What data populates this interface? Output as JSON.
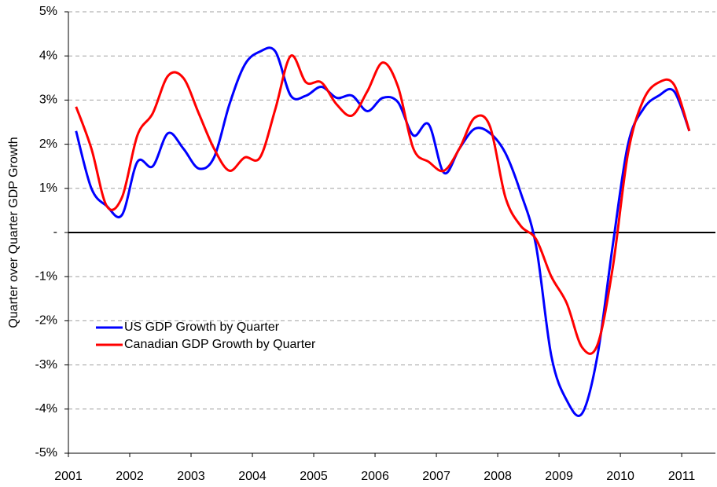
{
  "chart_data": {
    "type": "line",
    "y_label": "Quarter over Quarter GDP Growth",
    "x": [
      2001.125,
      2001.375,
      2001.625,
      2001.875,
      2002.125,
      2002.375,
      2002.625,
      2002.875,
      2003.125,
      2003.375,
      2003.625,
      2003.875,
      2004.125,
      2004.375,
      2004.625,
      2004.875,
      2005.125,
      2005.375,
      2005.625,
      2005.875,
      2006.125,
      2006.375,
      2006.625,
      2006.875,
      2007.125,
      2007.375,
      2007.625,
      2007.875,
      2008.125,
      2008.375,
      2008.625,
      2008.875,
      2009.125,
      2009.375,
      2009.625,
      2009.875,
      2010.125,
      2010.375,
      2010.625,
      2010.875,
      2011.125
    ],
    "series": [
      {
        "name": "US GDP Growth by Quarter",
        "color": "#0000ff",
        "values": [
          2.3,
          1.0,
          0.6,
          0.4,
          1.6,
          1.5,
          2.25,
          1.9,
          1.45,
          1.7,
          2.9,
          3.8,
          4.1,
          4.1,
          3.1,
          3.1,
          3.3,
          3.05,
          3.1,
          2.75,
          3.05,
          2.95,
          2.2,
          2.45,
          1.35,
          1.9,
          2.35,
          2.25,
          1.8,
          0.9,
          -0.3,
          -2.8,
          -3.8,
          -4.1,
          -2.8,
          -0.3,
          2.0,
          2.8,
          3.1,
          3.2,
          2.3
        ]
      },
      {
        "name": "Canadian GDP Growth by Quarter",
        "color": "#ff0000",
        "values": [
          2.85,
          1.9,
          0.6,
          0.8,
          2.2,
          2.7,
          3.55,
          3.5,
          2.7,
          1.9,
          1.4,
          1.7,
          1.7,
          2.8,
          4.0,
          3.4,
          3.4,
          2.9,
          2.65,
          3.2,
          3.85,
          3.3,
          1.9,
          1.6,
          1.4,
          1.9,
          2.6,
          2.4,
          0.8,
          0.15,
          -0.15,
          -1.0,
          -1.6,
          -2.6,
          -2.55,
          -0.8,
          1.8,
          3.0,
          3.4,
          3.35,
          2.3
        ]
      }
    ],
    "xlim": [
      2001,
      2011.55
    ],
    "xticks": [
      2001,
      2002,
      2003,
      2004,
      2005,
      2006,
      2007,
      2008,
      2009,
      2010,
      2011
    ],
    "ylim": [
      -5,
      5
    ],
    "yticks": [
      {
        "value": -5,
        "label": "-5%"
      },
      {
        "value": -4,
        "label": "-4%"
      },
      {
        "value": -3,
        "label": "-3%"
      },
      {
        "value": -2,
        "label": "-2%"
      },
      {
        "value": -1,
        "label": "-1%"
      },
      {
        "value": 0,
        "label": "-"
      },
      {
        "value": 1,
        "label": "1%"
      },
      {
        "value": 2,
        "label": "2%"
      },
      {
        "value": 3,
        "label": "3%"
      },
      {
        "value": 4,
        "label": "4%"
      },
      {
        "value": 5,
        "label": "5%"
      }
    ],
    "grid": true,
    "legend": "lower left"
  }
}
